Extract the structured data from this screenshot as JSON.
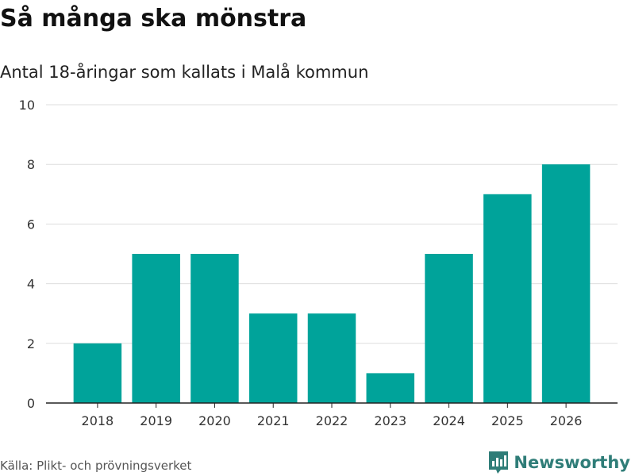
{
  "colors": {
    "bar": "#00a39a",
    "grid": "#dddddd",
    "axis": "#222222",
    "brand": "#2f7d78"
  },
  "brand": {
    "name": "Newsworthy"
  },
  "source": "Källa: Plikt- och prövningsverket",
  "chart_data": {
    "type": "bar",
    "title": "Så många ska mönstra",
    "subtitle": "Antal 18-åringar som kallats i Malå kommun",
    "xlabel": "",
    "ylabel": "",
    "categories": [
      "2018",
      "2019",
      "2020",
      "2021",
      "2022",
      "2023",
      "2024",
      "2025",
      "2026"
    ],
    "values": [
      2,
      5,
      5,
      3,
      3,
      1,
      5,
      7,
      8
    ],
    "ylim": [
      0,
      10
    ],
    "yticks": [
      0,
      2,
      4,
      6,
      8,
      10
    ],
    "grid": true
  }
}
